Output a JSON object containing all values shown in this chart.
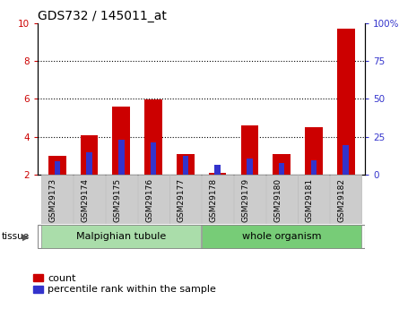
{
  "title": "GDS732 / 145011_at",
  "categories": [
    "GSM29173",
    "GSM29174",
    "GSM29175",
    "GSM29176",
    "GSM29177",
    "GSM29178",
    "GSM29179",
    "GSM29180",
    "GSM29181",
    "GSM29182"
  ],
  "count_values": [
    3.0,
    4.1,
    5.6,
    5.95,
    3.1,
    2.1,
    4.6,
    3.1,
    4.5,
    9.7
  ],
  "percentile_values": [
    2.7,
    3.2,
    3.85,
    3.7,
    3.0,
    2.5,
    2.85,
    2.6,
    2.75,
    3.55
  ],
  "bar_base": 2.0,
  "ylim_left": [
    2,
    10
  ],
  "ylim_right": [
    0,
    100
  ],
  "yticks_left": [
    2,
    4,
    6,
    8,
    10
  ],
  "yticks_right": [
    0,
    25,
    50,
    75,
    100
  ],
  "ytick_labels_right": [
    "0",
    "25",
    "50",
    "75",
    "100%"
  ],
  "color_count": "#cc0000",
  "color_percentile": "#3333cc",
  "tissue_groups": [
    {
      "label": "Malpighian tubule",
      "indices": [
        0,
        1,
        2,
        3,
        4
      ],
      "color": "#aaddaa"
    },
    {
      "label": "whole organism",
      "indices": [
        5,
        6,
        7,
        8,
        9
      ],
      "color": "#77cc77"
    }
  ],
  "tissue_label": "tissue",
  "legend_count": "count",
  "legend_percentile": "percentile rank within the sample",
  "bar_width": 0.55,
  "blue_bar_width": 0.18,
  "tick_label_bg": "#cccccc",
  "title_fontsize": 10,
  "axis_fontsize": 7.5,
  "legend_fontsize": 8,
  "cat_fontsize": 6.5,
  "tissue_fontsize": 8
}
